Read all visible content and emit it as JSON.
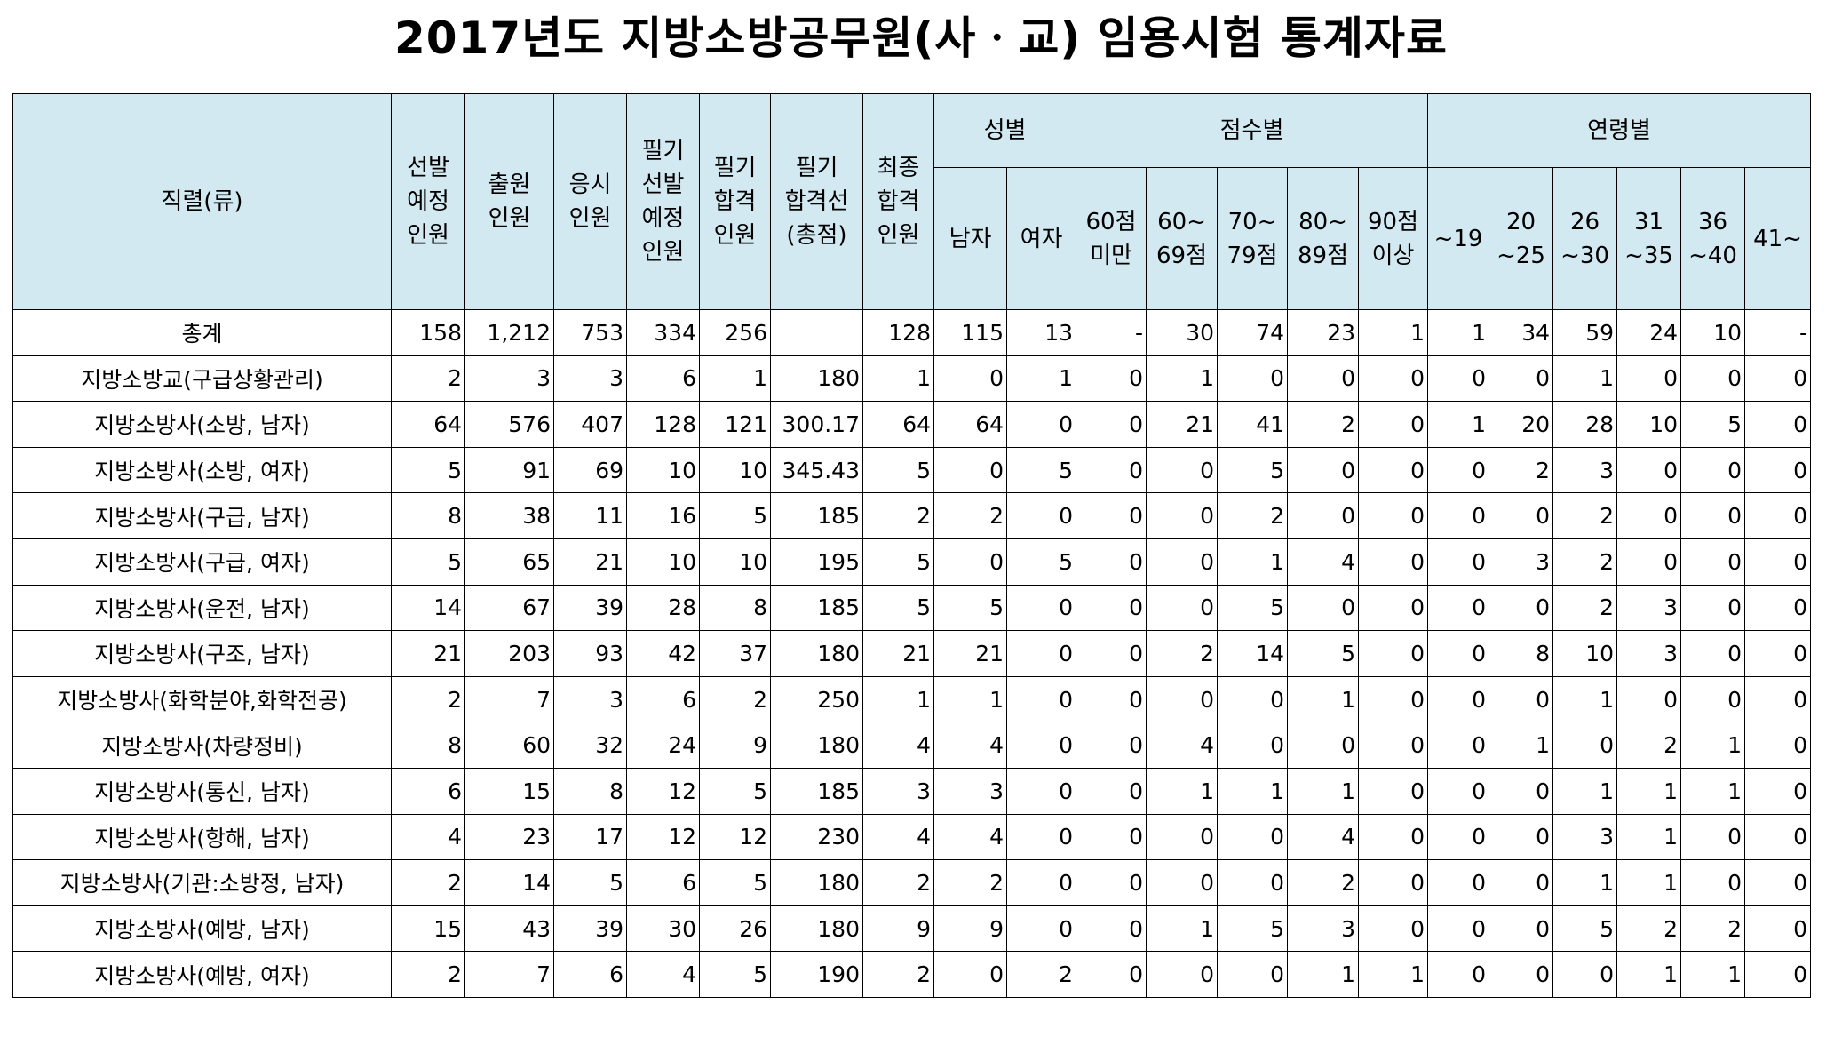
{
  "title": "2017년도 지방소방공무원(사ㆍ교) 임용시험 통계자료",
  "headers": {
    "jikryeol": "직렬(류)",
    "sunbal": [
      "선발",
      "예정",
      "인원"
    ],
    "chulwon": [
      "출원",
      "인원"
    ],
    "eungsi": [
      "응시",
      "인원"
    ],
    "pilgi_sunbal": [
      "필기",
      "선발",
      "예정",
      "인원"
    ],
    "pilgi_hapgyeok": [
      "필기",
      "합격",
      "인원"
    ],
    "pilgi_line": [
      "필기",
      "합격선",
      "(총점)"
    ],
    "choejong": [
      "최종",
      "합격",
      "인원"
    ],
    "gender_group": "성별",
    "score_group": "점수별",
    "age_group": "연령별",
    "gender": [
      [
        "남자"
      ],
      [
        "여자"
      ]
    ],
    "score": [
      [
        "60점",
        "미만"
      ],
      [
        "60~",
        "69점"
      ],
      [
        "70~",
        "79점"
      ],
      [
        "80~",
        "89점"
      ],
      [
        "90점",
        "이상"
      ]
    ],
    "age": [
      [
        "~19"
      ],
      [
        "20",
        "~25"
      ],
      [
        "26",
        "~30"
      ],
      [
        "31",
        "~35"
      ],
      [
        "36",
        "~40"
      ],
      [
        "41~"
      ]
    ]
  },
  "rows": [
    {
      "name": "총계",
      "vals": [
        "158",
        "1,212",
        "753",
        "334",
        "256",
        "",
        "128",
        "115",
        "13",
        "-",
        "30",
        "74",
        "23",
        "1",
        "1",
        "34",
        "59",
        "24",
        "10",
        "-"
      ]
    },
    {
      "name": "지방소방교(구급상황관리)",
      "vals": [
        "2",
        "3",
        "3",
        "6",
        "1",
        "180",
        "1",
        "0",
        "1",
        "0",
        "1",
        "0",
        "0",
        "0",
        "0",
        "0",
        "1",
        "0",
        "0",
        "0"
      ]
    },
    {
      "name": "지방소방사(소방, 남자)",
      "vals": [
        "64",
        "576",
        "407",
        "128",
        "121",
        "300.17",
        "64",
        "64",
        "0",
        "0",
        "21",
        "41",
        "2",
        "0",
        "1",
        "20",
        "28",
        "10",
        "5",
        "0"
      ]
    },
    {
      "name": "지방소방사(소방, 여자)",
      "vals": [
        "5",
        "91",
        "69",
        "10",
        "10",
        "345.43",
        "5",
        "0",
        "5",
        "0",
        "0",
        "5",
        "0",
        "0",
        "0",
        "2",
        "3",
        "0",
        "0",
        "0"
      ]
    },
    {
      "name": "지방소방사(구급, 남자)",
      "vals": [
        "8",
        "38",
        "11",
        "16",
        "5",
        "185",
        "2",
        "2",
        "0",
        "0",
        "0",
        "2",
        "0",
        "0",
        "0",
        "0",
        "2",
        "0",
        "0",
        "0"
      ]
    },
    {
      "name": "지방소방사(구급, 여자)",
      "vals": [
        "5",
        "65",
        "21",
        "10",
        "10",
        "195",
        "5",
        "0",
        "5",
        "0",
        "0",
        "1",
        "4",
        "0",
        "0",
        "3",
        "2",
        "0",
        "0",
        "0"
      ]
    },
    {
      "name": "지방소방사(운전, 남자)",
      "vals": [
        "14",
        "67",
        "39",
        "28",
        "8",
        "185",
        "5",
        "5",
        "0",
        "0",
        "0",
        "5",
        "0",
        "0",
        "0",
        "0",
        "2",
        "3",
        "0",
        "0"
      ]
    },
    {
      "name": "지방소방사(구조, 남자)",
      "vals": [
        "21",
        "203",
        "93",
        "42",
        "37",
        "180",
        "21",
        "21",
        "0",
        "0",
        "2",
        "14",
        "5",
        "0",
        "0",
        "8",
        "10",
        "3",
        "0",
        "0"
      ]
    },
    {
      "name": "지방소방사(화학분야,화학전공)",
      "vals": [
        "2",
        "7",
        "3",
        "6",
        "2",
        "250",
        "1",
        "1",
        "0",
        "0",
        "0",
        "0",
        "1",
        "0",
        "0",
        "0",
        "1",
        "0",
        "0",
        "0"
      ]
    },
    {
      "name": "지방소방사(차량정비)",
      "vals": [
        "8",
        "60",
        "32",
        "24",
        "9",
        "180",
        "4",
        "4",
        "0",
        "0",
        "4",
        "0",
        "0",
        "0",
        "0",
        "1",
        "0",
        "2",
        "1",
        "0"
      ]
    },
    {
      "name": "지방소방사(통신, 남자)",
      "vals": [
        "6",
        "15",
        "8",
        "12",
        "5",
        "185",
        "3",
        "3",
        "0",
        "0",
        "1",
        "1",
        "1",
        "0",
        "0",
        "0",
        "1",
        "1",
        "1",
        "0"
      ]
    },
    {
      "name": "지방소방사(항해, 남자)",
      "vals": [
        "4",
        "23",
        "17",
        "12",
        "12",
        "230",
        "4",
        "4",
        "0",
        "0",
        "0",
        "0",
        "4",
        "0",
        "0",
        "0",
        "3",
        "1",
        "0",
        "0"
      ]
    },
    {
      "name": "지방소방사(기관:소방정, 남자)",
      "vals": [
        "2",
        "14",
        "5",
        "6",
        "5",
        "180",
        "2",
        "2",
        "0",
        "0",
        "0",
        "0",
        "2",
        "0",
        "0",
        "0",
        "1",
        "1",
        "0",
        "0"
      ]
    },
    {
      "name": "지방소방사(예방, 남자)",
      "vals": [
        "15",
        "43",
        "39",
        "30",
        "26",
        "180",
        "9",
        "9",
        "0",
        "0",
        "1",
        "5",
        "3",
        "0",
        "0",
        "0",
        "5",
        "2",
        "2",
        "0"
      ]
    },
    {
      "name": "지방소방사(예방, 여자)",
      "vals": [
        "2",
        "7",
        "6",
        "4",
        "5",
        "190",
        "2",
        "0",
        "2",
        "0",
        "0",
        "0",
        "1",
        "1",
        "0",
        "0",
        "0",
        "1",
        "1",
        "0"
      ]
    }
  ]
}
